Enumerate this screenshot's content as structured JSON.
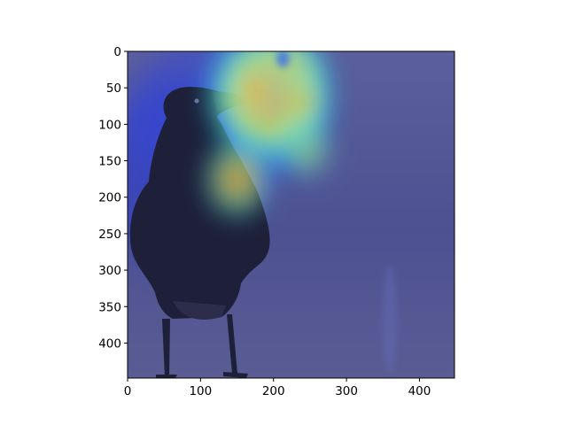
{
  "chart_data": {
    "type": "heatmap",
    "title": "",
    "xlabel": "",
    "ylabel": "",
    "xlim": [
      0,
      448
    ],
    "ylim": [
      448,
      0
    ],
    "x_ticks": [
      0,
      100,
      200,
      300,
      400
    ],
    "y_ticks": [
      0,
      50,
      100,
      150,
      200,
      250,
      300,
      350,
      400
    ],
    "x_tick_labels": [
      "0",
      "100",
      "200",
      "300",
      "400"
    ],
    "y_tick_labels": [
      "0",
      "50",
      "100",
      "150",
      "200",
      "250",
      "300",
      "350",
      "400"
    ],
    "grid": false,
    "colormap": "jet",
    "overlay_subject": "crow-photo",
    "heat_blobs": [
      {
        "x": 195,
        "y": 60,
        "rx": 85,
        "ry": 95,
        "intensity": 0.55
      },
      {
        "x": 180,
        "y": 55,
        "rx": 40,
        "ry": 42,
        "intensity": 0.5
      },
      {
        "x": 232,
        "y": 70,
        "rx": 30,
        "ry": 45,
        "intensity": 0.35
      },
      {
        "x": 150,
        "y": 175,
        "rx": 45,
        "ry": 55,
        "intensity": 0.35
      },
      {
        "x": 245,
        "y": 135,
        "rx": 35,
        "ry": 40,
        "intensity": 0.25
      },
      {
        "x": 225,
        "y": 18,
        "rx": 35,
        "ry": 25,
        "intensity": 0.3
      }
    ],
    "cool_spots": [
      {
        "x": 213,
        "y": 10,
        "rx": 9,
        "ry": 12
      }
    ]
  },
  "colors": {
    "background_blue": "#4a4f93",
    "jet_low": "#00007f",
    "jet_mid": "#00ff80",
    "jet_high": "#ff0000",
    "axis": "#000000"
  }
}
